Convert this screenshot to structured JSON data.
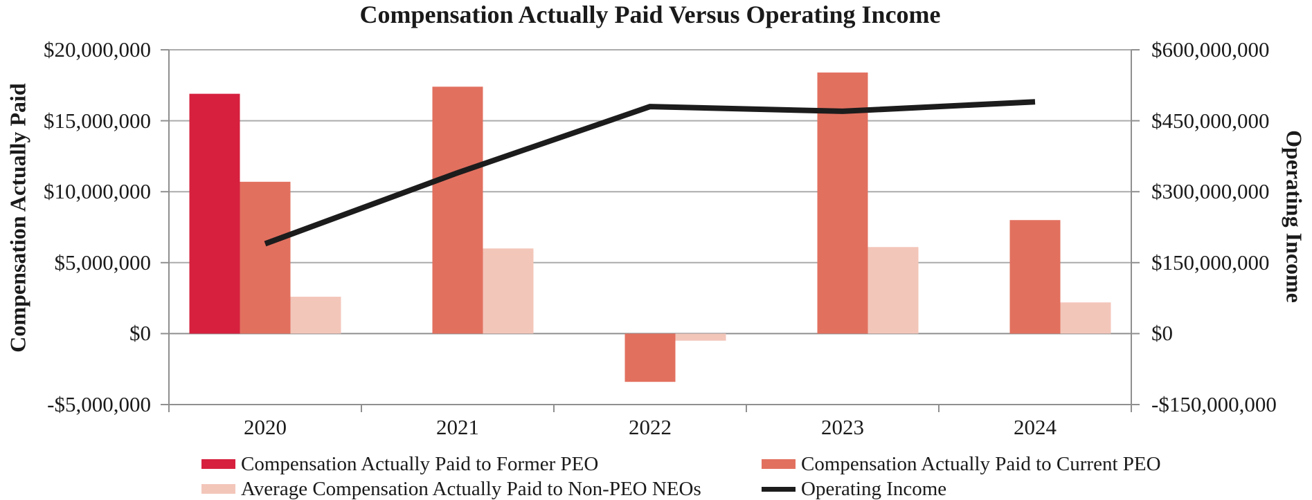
{
  "chart": {
    "title": "Compensation Actually Paid Versus Operating Income",
    "left_axis": {
      "title": "Compensation Actually Paid",
      "ticks": [
        "$20,000,000",
        "$15,000,000",
        "$10,000,000",
        "$5,000,000",
        "$0",
        "-$5,000,000"
      ],
      "max": 20000000,
      "min": -5000000,
      "step": 5000000
    },
    "right_axis": {
      "title": "Operating Income",
      "ticks": [
        "$600,000,000",
        "$450,000,000",
        "$300,000,000",
        "$150,000,000",
        "$0",
        "-$150,000,000"
      ],
      "max": 600000000,
      "min": -150000000,
      "step": 150000000
    },
    "colors": {
      "gridline": "#ababab",
      "axis_line": "#8f8f8f",
      "former_peo_bar": "#d6203e",
      "current_peo_bar": "#e2705f",
      "non_peo_bar": "#f3c6ba",
      "operating_income_line": "#1c1c1c"
    }
  },
  "chart_data": {
    "type": "bar",
    "subtype": "grouped-bars-with-line-overlay",
    "title": "Compensation Actually Paid Versus Operating Income",
    "categories": [
      "2020",
      "2021",
      "2022",
      "2023",
      "2024"
    ],
    "left_ylabel": "Compensation Actually Paid",
    "right_ylabel": "Operating Income",
    "left_ylim": [
      -5000000,
      20000000
    ],
    "right_ylim": [
      -150000000,
      600000000
    ],
    "grid": true,
    "legend_position": "bottom",
    "series": [
      {
        "key": "former-peo",
        "name": "Compensation Actually Paid to Former PEO",
        "type": "bar",
        "axis": "left",
        "color": "#d6203e",
        "values": [
          16900000,
          null,
          null,
          null,
          null
        ]
      },
      {
        "key": "current-peo",
        "name": "Compensation Actually Paid to Current PEO",
        "type": "bar",
        "axis": "left",
        "color": "#e2705f",
        "values": [
          10700000,
          17400000,
          -3400000,
          18400000,
          8000000
        ]
      },
      {
        "key": "non-peo-neos",
        "name": "Average Compensation Actually Paid to Non-PEO NEOs",
        "type": "bar",
        "axis": "left",
        "color": "#f3c6ba",
        "values": [
          2600000,
          6000000,
          -500000,
          6100000,
          2200000
        ]
      },
      {
        "key": "operating-income",
        "name": "Operating Income",
        "type": "line",
        "axis": "right",
        "color": "#1c1c1c",
        "values": [
          190000000,
          340000000,
          480000000,
          470000000,
          490000000
        ]
      }
    ]
  }
}
